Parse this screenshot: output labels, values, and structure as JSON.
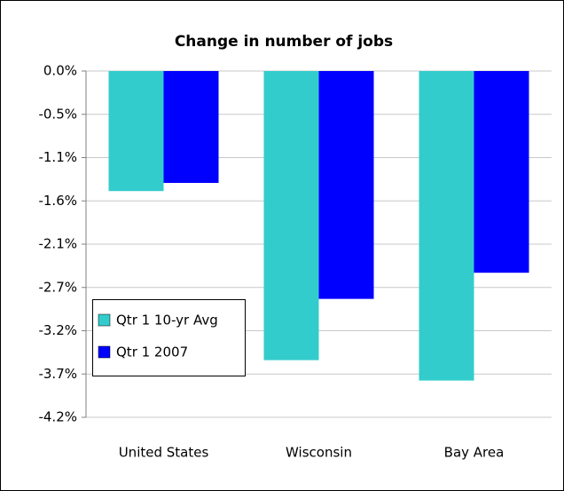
{
  "chart_data": {
    "type": "bar",
    "title": "Change in number of jobs",
    "categories": [
      "United States",
      "Wisconsin",
      "Bay Area"
    ],
    "series": [
      {
        "name": "Qtr 1 10-yr Avg",
        "color": "#33cccc",
        "values": [
          -1.47,
          -3.54,
          -3.79
        ]
      },
      {
        "name": "Qtr 1 2007",
        "color": "#0000ff",
        "values": [
          -1.37,
          -2.79,
          -2.47
        ]
      }
    ],
    "ylim": [
      -4.24,
      0
    ],
    "yticks": [
      {
        "value": 0,
        "label": "0.0%"
      },
      {
        "value": -0.53,
        "label": "-0.5%"
      },
      {
        "value": -1.06,
        "label": "-1.1%"
      },
      {
        "value": -1.59,
        "label": "-1.6%"
      },
      {
        "value": -2.12,
        "label": "-2.1%"
      },
      {
        "value": -2.65,
        "label": "-2.7%"
      },
      {
        "value": -3.18,
        "label": "-3.2%"
      },
      {
        "value": -3.71,
        "label": "-3.7%"
      },
      {
        "value": -4.24,
        "label": "-4.2%"
      }
    ],
    "grid": true
  }
}
